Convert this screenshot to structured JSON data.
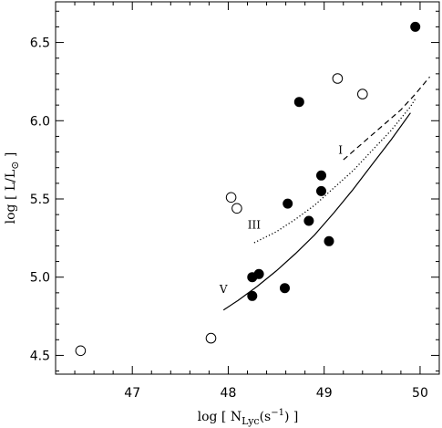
{
  "chart_data": {
    "type": "scatter",
    "xlabel": "log [ N",
    "xlabel_sub": "Lyc",
    "xlabel_tail": "(s",
    "xlabel_exp": "−1",
    "xlabel_end": ") ]",
    "ylabel": "log [ L/L",
    "ylabel_sun": "⊙",
    "ylabel_end": " ]",
    "xlim": [
      46.2,
      50.2
    ],
    "ylim": [
      4.38,
      6.76
    ],
    "xticks": [
      47,
      48,
      49,
      50
    ],
    "xtick_labels": [
      "47",
      "48",
      "49",
      "50"
    ],
    "yticks": [
      4.5,
      5.0,
      5.5,
      6.0,
      6.5
    ],
    "ytick_labels": [
      "4.5",
      "5.0",
      "5.5",
      "6.0",
      "6.5"
    ],
    "grid": false,
    "series": [
      {
        "marker": "filled-circle",
        "x": [
          49.95,
          48.74,
          48.97,
          48.62,
          48.97,
          48.84,
          49.05,
          48.25,
          48.32,
          48.25,
          48.59
        ],
        "y": [
          6.6,
          6.12,
          5.65,
          5.47,
          5.55,
          5.36,
          5.23,
          5.0,
          5.02,
          4.88,
          4.93
        ]
      },
      {
        "marker": "open-circle",
        "x": [
          49.14,
          49.4,
          48.03,
          48.09,
          47.82,
          46.46
        ],
        "y": [
          6.27,
          6.17,
          5.51,
          5.44,
          4.61,
          4.53
        ]
      }
    ],
    "curves": [
      {
        "label": "V",
        "style": "solid",
        "x": [
          47.95,
          48.1,
          48.3,
          48.5,
          48.7,
          48.9,
          49.1,
          49.3,
          49.5,
          49.7,
          49.9
        ],
        "y": [
          4.79,
          4.85,
          4.94,
          5.04,
          5.15,
          5.27,
          5.41,
          5.56,
          5.72,
          5.88,
          6.05
        ]
      },
      {
        "label": "III",
        "style": "dotted",
        "x": [
          48.27,
          48.5,
          48.7,
          48.9,
          49.1,
          49.3,
          49.5,
          49.7,
          49.9,
          49.95
        ],
        "y": [
          5.22,
          5.29,
          5.37,
          5.46,
          5.57,
          5.68,
          5.81,
          5.94,
          6.09,
          6.14
        ]
      },
      {
        "label": "I",
        "style": "dashed",
        "x": [
          49.2,
          49.35,
          49.5,
          49.65,
          49.8,
          49.95,
          50.1
        ],
        "y": [
          5.75,
          5.83,
          5.91,
          5.99,
          6.07,
          6.17,
          6.28
        ]
      }
    ],
    "curve_label_positions": [
      {
        "label": "V",
        "x": 47.95,
        "y": 4.9
      },
      {
        "label": "III",
        "x": 48.27,
        "y": 5.31
      },
      {
        "label": "I",
        "x": 49.17,
        "y": 5.79
      }
    ]
  }
}
